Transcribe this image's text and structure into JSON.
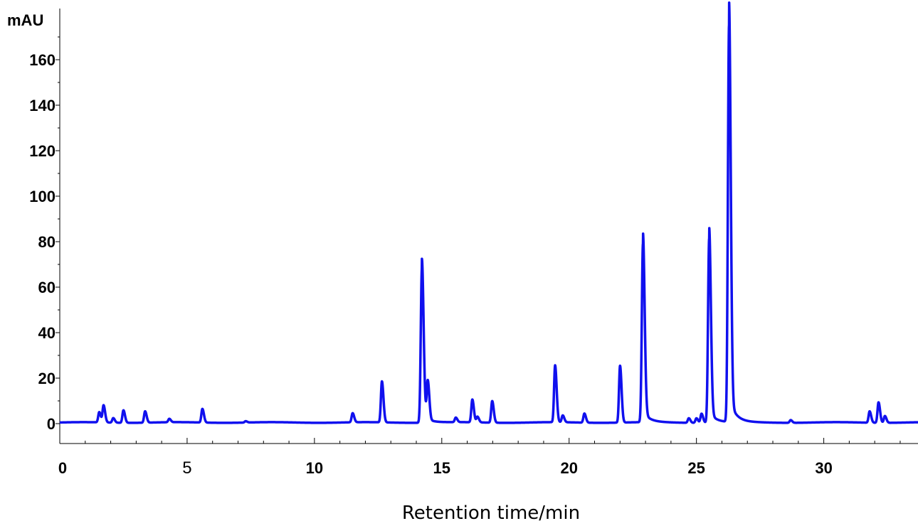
{
  "chart_data": {
    "type": "line",
    "title": "",
    "xlabel": "Retention time/min",
    "ylabel": "mAU",
    "xlim": [
      0,
      33.7
    ],
    "ylim": [
      -8,
      172
    ],
    "grid": false,
    "x_ticks": [
      {
        "value": 0,
        "label": "0",
        "bold": true
      },
      {
        "value": 5,
        "label": "5",
        "bold": false
      },
      {
        "value": 10,
        "label": "10",
        "bold": true
      },
      {
        "value": 15,
        "label": "15",
        "bold": true
      },
      {
        "value": 20,
        "label": "20",
        "bold": true
      },
      {
        "value": 25,
        "label": "25",
        "bold": true
      },
      {
        "value": 30,
        "label": "30",
        "bold": true
      }
    ],
    "y_ticks": [
      {
        "value": 0,
        "label": "0"
      },
      {
        "value": 20,
        "label": "20"
      },
      {
        "value": 40,
        "label": "40"
      },
      {
        "value": 60,
        "label": "60"
      },
      {
        "value": 80,
        "label": "80"
      },
      {
        "value": 100,
        "label": "100"
      },
      {
        "value": 120,
        "label": "120"
      },
      {
        "value": 140,
        "label": "140"
      },
      {
        "value": 160,
        "label": "160"
      }
    ],
    "baseline": 0.5,
    "series": [
      {
        "color": "#1010ee",
        "peaks": [
          {
            "rt": 1.55,
            "height": 4.5
          },
          {
            "rt": 1.72,
            "height": 7.5
          },
          {
            "rt": 2.1,
            "height": 2.0
          },
          {
            "rt": 2.5,
            "height": 5.5
          },
          {
            "rt": 3.35,
            "height": 5.0
          },
          {
            "rt": 4.3,
            "height": 1.5
          },
          {
            "rt": 5.6,
            "height": 6.0
          },
          {
            "rt": 7.3,
            "height": 0.6
          },
          {
            "rt": 11.5,
            "height": 4.0
          },
          {
            "rt": 12.65,
            "height": 18.0
          },
          {
            "rt": 14.22,
            "height": 68.0
          },
          {
            "rt": 14.45,
            "height": 17.0
          },
          {
            "rt": 15.55,
            "height": 2.0
          },
          {
            "rt": 16.2,
            "height": 10.0
          },
          {
            "rt": 16.4,
            "height": 2.5
          },
          {
            "rt": 16.98,
            "height": 9.5
          },
          {
            "rt": 19.45,
            "height": 25.0
          },
          {
            "rt": 19.75,
            "height": 3.0
          },
          {
            "rt": 20.6,
            "height": 4.0
          },
          {
            "rt": 22.0,
            "height": 25.0
          },
          {
            "rt": 22.9,
            "height": 78.5
          },
          {
            "rt": 24.7,
            "height": 2.0
          },
          {
            "rt": 25.0,
            "height": 2.0
          },
          {
            "rt": 25.2,
            "height": 4.0
          },
          {
            "rt": 25.5,
            "height": 81.0
          },
          {
            "rt": 26.28,
            "height": 174.5
          },
          {
            "rt": 28.7,
            "height": 1.2
          },
          {
            "rt": 31.8,
            "height": 5.0
          },
          {
            "rt": 32.15,
            "height": 9.0
          },
          {
            "rt": 32.4,
            "height": 3.0
          }
        ]
      }
    ]
  }
}
